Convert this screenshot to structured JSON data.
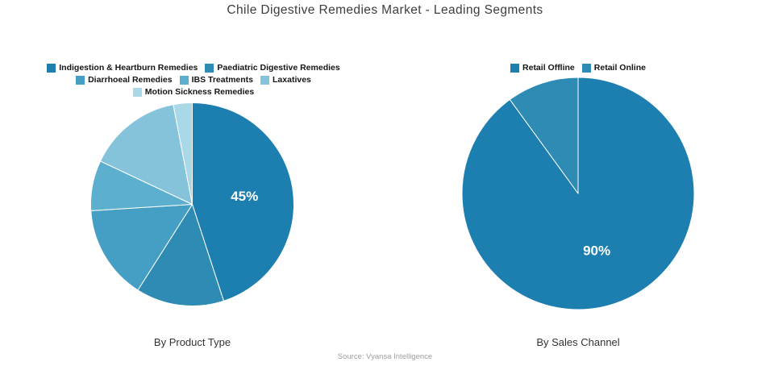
{
  "title": "Chile Digestive Remedies Market - Leading Segments",
  "source": "Source: Vyansa Intelligence",
  "colors": {
    "background": "#ffffff",
    "slice_divider": "#ffffff",
    "value_label_text": "#ffffff",
    "palette": [
      "#1d7fb0",
      "#2e8bb4",
      "#459fc4",
      "#5cafce",
      "#84c3da",
      "#a9d8e6"
    ]
  },
  "chart_data": [
    {
      "type": "pie",
      "caption": "By Product Type",
      "legend_position": "top",
      "start_angle_deg": 0,
      "direction": "clockwise",
      "units": "%",
      "slices": [
        {
          "label": "Indigestion & Heartburn Remedies",
          "value": 45,
          "value_label": "45%",
          "color": "#1d7fb0"
        },
        {
          "label": "Paediatric Digestive Remedies",
          "value": 14,
          "value_label": "",
          "color": "#2e8bb4"
        },
        {
          "label": "Diarrhoeal Remedies",
          "value": 15,
          "value_label": "",
          "color": "#459fc4"
        },
        {
          "label": "IBS Treatments",
          "value": 8,
          "value_label": "",
          "color": "#5cafce"
        },
        {
          "label": "Laxatives",
          "value": 15,
          "value_label": "",
          "color": "#84c3da"
        },
        {
          "label": "Motion Sickness Remedies",
          "value": 3,
          "value_label": "",
          "color": "#a9d8e6"
        }
      ]
    },
    {
      "type": "pie",
      "caption": "By Sales Channel",
      "legend_position": "top",
      "start_angle_deg": 0,
      "direction": "clockwise",
      "units": "%",
      "slices": [
        {
          "label": "Retail Offline",
          "value": 90,
          "value_label": "90%",
          "color": "#1d7fb0"
        },
        {
          "label": "Retail Online",
          "value": 10,
          "value_label": "",
          "color": "#2e8bb4"
        }
      ]
    }
  ]
}
